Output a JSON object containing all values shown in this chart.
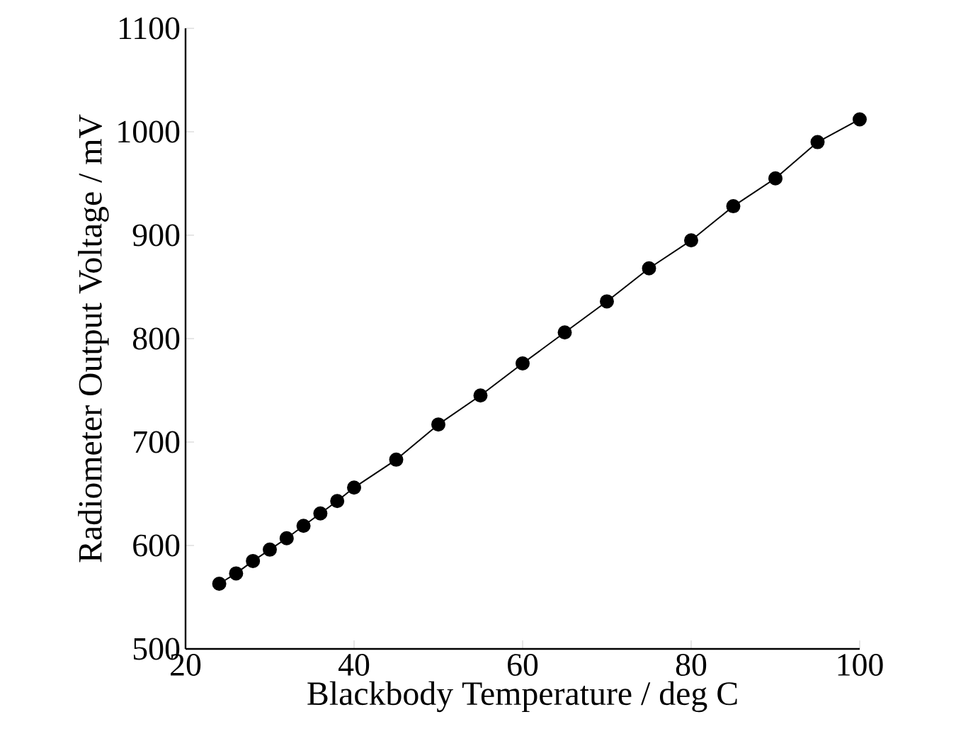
{
  "chart_data": {
    "type": "line",
    "xlabel": "Blackbody Temperature / deg C",
    "ylabel": "Radiometer Output Voltage / mV",
    "x": [
      24,
      26,
      28,
      30,
      32,
      34,
      36,
      38,
      40,
      45,
      50,
      55,
      60,
      65,
      70,
      75,
      80,
      85,
      90,
      95,
      100
    ],
    "series": [
      {
        "color": "#000000",
        "values": [
          563,
          573,
          585,
          596,
          607,
          619,
          631,
          643,
          656,
          683,
          717,
          745,
          776,
          806,
          836,
          868,
          895,
          928,
          955,
          990,
          1012
        ]
      }
    ],
    "xlim": [
      20,
      100
    ],
    "ylim": [
      500,
      1100
    ],
    "xticks": [
      20,
      40,
      60,
      80,
      100
    ],
    "yticks": [
      500,
      600,
      700,
      800,
      900,
      1000,
      1100
    ],
    "marker": "circle",
    "line_style": "solid"
  }
}
